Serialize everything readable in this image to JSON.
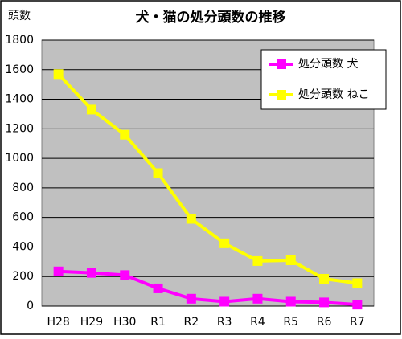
{
  "chart_data": {
    "type": "line",
    "title": "犬・猫の処分頭数の推移",
    "y_label": "頭数",
    "categories": [
      "H28",
      "H29",
      "H30",
      "R1",
      "R2",
      "R3",
      "R4",
      "R5",
      "R6",
      "R7"
    ],
    "series": [
      {
        "name": "処分頭数 犬",
        "color": "#ff00ff",
        "values": [
          235,
          225,
          210,
          120,
          50,
          30,
          50,
          30,
          25,
          10
        ]
      },
      {
        "name": "処分頭数 ねこ",
        "color": "#ffff00",
        "values": [
          1570,
          1330,
          1160,
          900,
          590,
          425,
          305,
          310,
          185,
          155
        ]
      }
    ],
    "ylim": [
      0,
      1800
    ],
    "yticks": [
      0,
      200,
      400,
      600,
      800,
      1000,
      1200,
      1400,
      1600,
      1800
    ],
    "grid": true,
    "legend": "upper right"
  }
}
